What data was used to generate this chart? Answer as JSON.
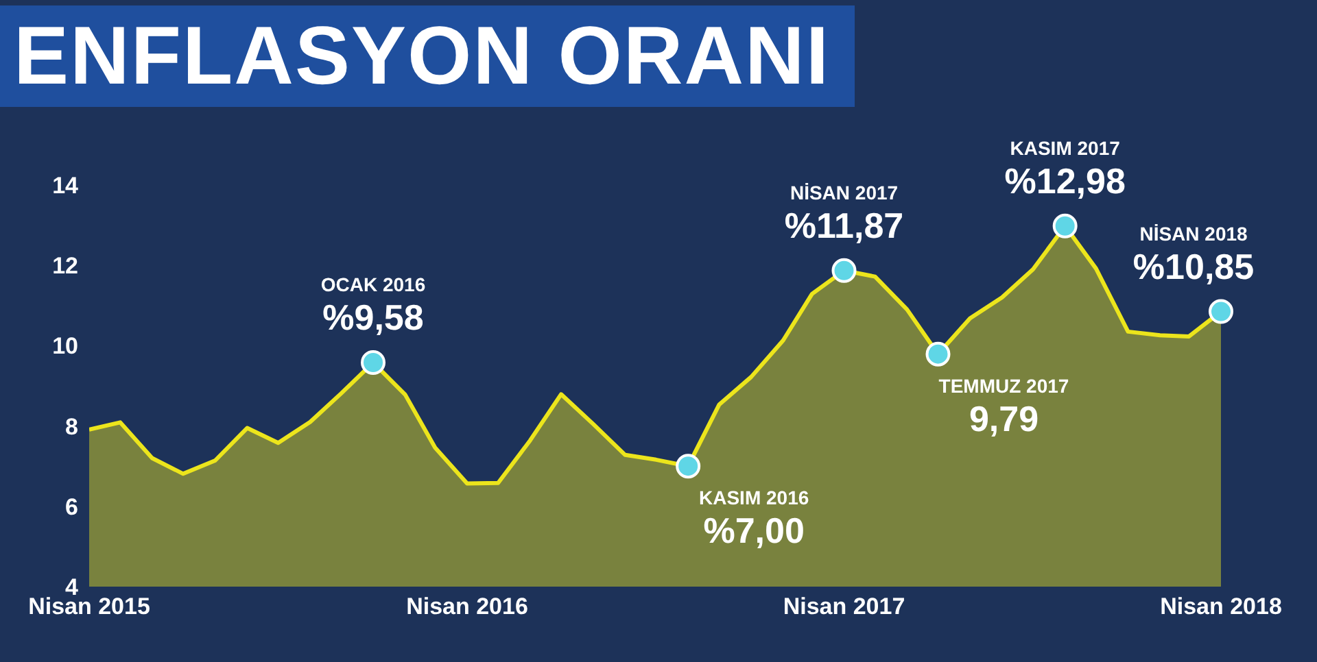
{
  "chart_data": {
    "type": "area",
    "title": "ENFLASYON ORANI",
    "x": [
      "2015-04",
      "2015-05",
      "2015-06",
      "2015-07",
      "2015-08",
      "2015-09",
      "2015-10",
      "2015-11",
      "2015-12",
      "2016-01",
      "2016-02",
      "2016-03",
      "2016-04",
      "2016-05",
      "2016-06",
      "2016-07",
      "2016-08",
      "2016-09",
      "2016-10",
      "2016-11",
      "2016-12",
      "2017-01",
      "2017-02",
      "2017-03",
      "2017-04",
      "2017-05",
      "2017-06",
      "2017-07",
      "2017-08",
      "2017-09",
      "2017-10",
      "2017-11",
      "2017-12",
      "2018-01",
      "2018-02",
      "2018-03",
      "2018-04"
    ],
    "series": [
      {
        "color": "#ece51c",
        "values": [
          7.91,
          8.09,
          7.2,
          6.81,
          7.14,
          7.95,
          7.58,
          8.1,
          8.81,
          9.58,
          8.78,
          7.46,
          6.57,
          6.58,
          7.64,
          8.79,
          8.05,
          7.28,
          7.16,
          7.0,
          8.53,
          9.22,
          10.13,
          11.29,
          11.87,
          11.72,
          10.9,
          9.79,
          10.68,
          11.2,
          11.9,
          12.98,
          11.92,
          10.35,
          10.26,
          10.23,
          10.85
        ]
      }
    ],
    "xlim": [
      "2015-04",
      "2018-04"
    ],
    "xticks": [
      {
        "value": "2015-04",
        "label": "Nisan 2015"
      },
      {
        "value": "2016-04",
        "label": "Nisan 2016"
      },
      {
        "value": "2017-04",
        "label": "Nisan 2017"
      },
      {
        "value": "2018-04",
        "label": "Nisan 2018"
      }
    ],
    "ylim": [
      4,
      14
    ],
    "yticks": [
      4,
      6,
      8,
      10,
      12,
      14
    ],
    "grid": false,
    "legend": false,
    "marker": "none",
    "annotations": [
      "OCAK 2016",
      {
        "text": "%9,58",
        "x": "2016-01",
        "y": 9.58
      },
      "KASIM 2016",
      {
        "text": "%7,00",
        "x": "2016-11",
        "y": 7.0
      },
      "NİSAN 2017",
      {
        "text": "%11,87",
        "x": "2017-04",
        "y": 11.87
      },
      "TEMMUZ 2017",
      {
        "text": "9,79",
        "x": "2017-07",
        "y": 9.79
      },
      "KASIM 2017",
      {
        "text": "%12,98",
        "x": "2017-11",
        "y": 12.98
      },
      "NİSAN 2018",
      {
        "text": "%10,85",
        "x": "2018-04",
        "y": 10.85
      }
    ]
  }
}
